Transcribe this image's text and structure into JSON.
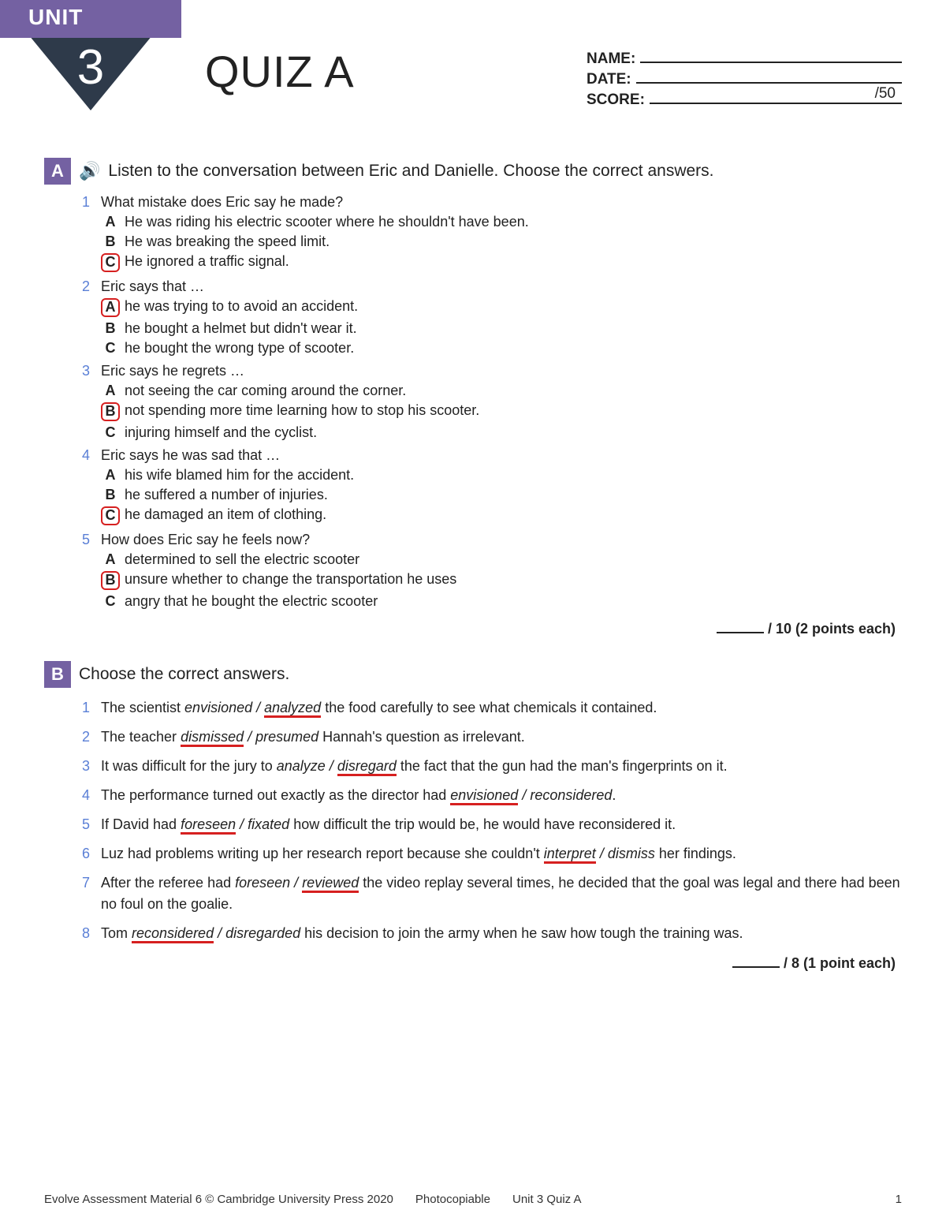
{
  "header": {
    "unit_label": "UNIT",
    "unit_number": "3",
    "quiz_title": "QUIZ A",
    "meta": {
      "name_label": "NAME:",
      "date_label": "DATE:",
      "score_label": "SCORE:",
      "score_max": "/50"
    }
  },
  "colors": {
    "purple": "#7461a2",
    "dark": "#2e3a4a",
    "blue": "#5a7fd6",
    "red": "#d62020"
  },
  "sectionA": {
    "letter": "A",
    "instruction": "Listen to the conversation between Eric and Danielle. Choose the correct answers.",
    "points": "/ 10 (2 points each)",
    "questions": [
      {
        "num": "1",
        "text": "What mistake does Eric say he made?",
        "options": [
          {
            "l": "A",
            "t": "He was riding his electric scooter where he shouldn't have been.",
            "marked": false
          },
          {
            "l": "B",
            "t": "He was breaking the speed limit.",
            "marked": false
          },
          {
            "l": "C",
            "t": "He ignored a traffic signal.",
            "marked": true
          }
        ]
      },
      {
        "num": "2",
        "text": "Eric says that …",
        "options": [
          {
            "l": "A",
            "t": "he was trying to to avoid an accident.",
            "marked": true
          },
          {
            "l": "B",
            "t": "he bought a helmet but didn't wear it.",
            "marked": false
          },
          {
            "l": "C",
            "t": "he bought the wrong type of scooter.",
            "marked": false
          }
        ]
      },
      {
        "num": "3",
        "text": "Eric says he regrets …",
        "options": [
          {
            "l": "A",
            "t": "not seeing the car coming around the corner.",
            "marked": false
          },
          {
            "l": "B",
            "t": "not spending more time learning how to stop his scooter.",
            "marked": true
          },
          {
            "l": "C",
            "t": "injuring himself and the cyclist.",
            "marked": false
          }
        ]
      },
      {
        "num": "4",
        "text": "Eric says he was sad that …",
        "options": [
          {
            "l": "A",
            "t": "his wife blamed him for the accident.",
            "marked": false
          },
          {
            "l": "B",
            "t": "he suffered a number of injuries.",
            "marked": false
          },
          {
            "l": "C",
            "t": "he damaged an item of clothing.",
            "marked": true
          }
        ]
      },
      {
        "num": "5",
        "text": "How does Eric say he feels now?",
        "options": [
          {
            "l": "A",
            "t": "determined to sell the electric scooter",
            "marked": false
          },
          {
            "l": "B",
            "t": "unsure whether to change the transportation he uses",
            "marked": true
          },
          {
            "l": "C",
            "t": "angry that he bought the electric scooter",
            "marked": false
          }
        ]
      }
    ]
  },
  "sectionB": {
    "letter": "B",
    "instruction": "Choose the correct answers.",
    "points": "/ 8 (1 point each)",
    "items": [
      {
        "num": "1",
        "pre": "The scientist ",
        "w1": "envisioned",
        "sep": " / ",
        "w2": "analyzed",
        "post": " the food carefully to see what chemicals it contained.",
        "correct": 2
      },
      {
        "num": "2",
        "pre": "The teacher ",
        "w1": "dismissed",
        "sep": " / ",
        "w2": "presumed",
        "post": " Hannah's question as irrelevant.",
        "correct": 1
      },
      {
        "num": "3",
        "pre": "It was difficult for the jury to ",
        "w1": "analyze",
        "sep": " / ",
        "w2": "disregard",
        "post": " the fact that the gun had the man's fingerprints on it.",
        "correct": 2
      },
      {
        "num": "4",
        "pre": "The performance turned out exactly as the director had ",
        "w1": "envisioned",
        "sep": " / ",
        "w2": "reconsidered",
        "post": ".",
        "correct": 1
      },
      {
        "num": "5",
        "pre": "If David had ",
        "w1": "foreseen",
        "sep": " / ",
        "w2": "fixated",
        "post": " how difficult the trip would be, he would have reconsidered it.",
        "correct": 1
      },
      {
        "num": "6",
        "pre": "Luz had problems writing up her research report because she couldn't ",
        "w1": "interpret",
        "sep": " / ",
        "w2": "dismiss",
        "post": " her findings.",
        "correct": 1
      },
      {
        "num": "7",
        "pre": "After the referee had ",
        "w1": "foreseen",
        "sep": " / ",
        "w2": "reviewed",
        "post": " the video replay several times, he decided that the goal was legal and there had been no foul on the goalie.",
        "correct": 2
      },
      {
        "num": "8",
        "pre": "Tom ",
        "w1": "reconsidered",
        "sep": " / ",
        "w2": "disregarded",
        "post": " his decision to join the army when he saw how tough the training was.",
        "correct": 1
      }
    ]
  },
  "footer": {
    "copyright": "Evolve Assessment Material 6 © Cambridge University Press 2020",
    "photocopiable": "Photocopiable",
    "unit_ref": "Unit 3 Quiz A",
    "page": "1"
  }
}
